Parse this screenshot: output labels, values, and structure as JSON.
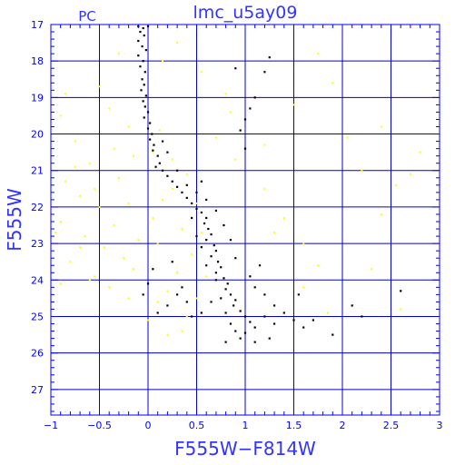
{
  "header": {
    "title": "lmc_u5ay09",
    "chip_label": "PC"
  },
  "colors": {
    "axis": "#0000ff",
    "grid": "#0000cc",
    "label": "#3333ff",
    "primary_stars": "#000000",
    "comparison_stars": "#ffff00"
  },
  "chart_data": {
    "type": "scatter",
    "title": "lmc_u5ay09",
    "xlabel": "F555W−F814W",
    "ylabel": "F555W",
    "xlim": [
      -1,
      3
    ],
    "ylim": [
      27.7,
      17
    ],
    "y_inverted": true,
    "grid": true,
    "x_ticks": [
      -1,
      -0.5,
      0,
      0.5,
      1,
      1.5,
      2,
      2.5,
      3
    ],
    "x_tick_labels": [
      "−1",
      "−0.5",
      "0",
      "0.5",
      "1",
      "1.5",
      "2",
      "2.5",
      "3"
    ],
    "y_ticks": [
      17,
      18,
      19,
      20,
      21,
      22,
      23,
      24,
      25,
      26,
      27
    ],
    "y_tick_labels": [
      "17",
      "18",
      "19",
      "20",
      "21",
      "22",
      "23",
      "24",
      "25",
      "26",
      "27"
    ],
    "series": [
      {
        "color": "#000000",
        "values": [
          [
            -0.1,
            17.05
          ],
          [
            -0.05,
            17.1
          ],
          [
            0.0,
            17.05
          ],
          [
            -0.08,
            17.2
          ],
          [
            -0.04,
            17.3
          ],
          [
            -0.1,
            17.45
          ],
          [
            -0.06,
            17.6
          ],
          [
            -0.02,
            17.7
          ],
          [
            -0.1,
            17.85
          ],
          [
            -0.05,
            18.0
          ],
          [
            -0.08,
            18.15
          ],
          [
            -0.03,
            18.3
          ],
          [
            -0.06,
            18.5
          ],
          [
            -0.04,
            18.65
          ],
          [
            -0.07,
            18.8
          ],
          [
            -0.02,
            18.95
          ],
          [
            -0.05,
            19.1
          ],
          [
            -0.03,
            19.25
          ],
          [
            0.0,
            19.4
          ],
          [
            -0.04,
            19.55
          ],
          [
            0.02,
            19.7
          ],
          [
            0.0,
            19.85
          ],
          [
            0.04,
            20.0
          ],
          [
            0.02,
            20.15
          ],
          [
            0.06,
            20.3
          ],
          [
            0.05,
            20.45
          ],
          [
            0.1,
            20.6
          ],
          [
            0.12,
            20.8
          ],
          [
            0.15,
            21.0
          ],
          [
            0.2,
            21.15
          ],
          [
            0.25,
            21.3
          ],
          [
            0.3,
            21.45
          ],
          [
            0.35,
            21.6
          ],
          [
            0.4,
            21.75
          ],
          [
            0.45,
            21.9
          ],
          [
            0.5,
            22.05
          ],
          [
            0.55,
            22.15
          ],
          [
            0.6,
            22.3
          ],
          [
            0.58,
            22.45
          ],
          [
            0.62,
            22.6
          ],
          [
            0.65,
            22.75
          ],
          [
            0.6,
            22.9
          ],
          [
            0.68,
            23.05
          ],
          [
            0.7,
            23.2
          ],
          [
            0.65,
            23.35
          ],
          [
            0.72,
            23.5
          ],
          [
            0.75,
            23.65
          ],
          [
            0.7,
            23.8
          ],
          [
            0.78,
            23.95
          ],
          [
            0.82,
            24.1
          ],
          [
            0.8,
            24.25
          ],
          [
            0.85,
            24.4
          ],
          [
            0.9,
            24.55
          ],
          [
            0.88,
            24.7
          ],
          [
            0.95,
            24.85
          ],
          [
            1.0,
            25.0
          ],
          [
            1.05,
            25.15
          ],
          [
            1.1,
            25.3
          ],
          [
            1.0,
            25.45
          ],
          [
            0.95,
            25.6
          ],
          [
            0.15,
            20.2
          ],
          [
            0.2,
            20.5
          ],
          [
            0.08,
            20.9
          ],
          [
            0.3,
            21.0
          ],
          [
            0.4,
            21.4
          ],
          [
            0.5,
            21.6
          ],
          [
            0.45,
            22.3
          ],
          [
            0.5,
            22.8
          ],
          [
            0.55,
            23.1
          ],
          [
            0.6,
            23.6
          ],
          [
            0.7,
            24.0
          ],
          [
            0.75,
            24.5
          ],
          [
            0.8,
            24.9
          ],
          [
            0.85,
            25.2
          ],
          [
            1.1,
            24.2
          ],
          [
            1.2,
            24.4
          ],
          [
            1.3,
            24.7
          ],
          [
            1.4,
            24.9
          ],
          [
            1.5,
            25.1
          ],
          [
            1.6,
            25.3
          ],
          [
            1.2,
            25.0
          ],
          [
            1.3,
            25.2
          ],
          [
            1.15,
            23.6
          ],
          [
            1.05,
            23.9
          ],
          [
            0.9,
            23.4
          ],
          [
            0.85,
            22.9
          ],
          [
            0.78,
            22.5
          ],
          [
            0.7,
            22.1
          ],
          [
            0.6,
            21.8
          ],
          [
            0.55,
            21.3
          ],
          [
            0.65,
            24.6
          ],
          [
            0.55,
            24.9
          ],
          [
            0.45,
            25.0
          ],
          [
            0.4,
            24.6
          ],
          [
            0.35,
            24.2
          ],
          [
            0.3,
            24.4
          ],
          [
            0.2,
            24.7
          ],
          [
            0.1,
            24.9
          ],
          [
            -0.05,
            24.4
          ],
          [
            0.0,
            24.1
          ],
          [
            0.05,
            23.7
          ],
          [
            0.25,
            23.5
          ],
          [
            1.0,
            19.6
          ],
          [
            1.05,
            19.3
          ],
          [
            1.1,
            19.0
          ],
          [
            0.95,
            19.9
          ],
          [
            1.0,
            20.4
          ],
          [
            1.25,
            17.9
          ],
          [
            1.2,
            18.3
          ],
          [
            0.9,
            18.2
          ],
          [
            1.55,
            24.4
          ],
          [
            1.7,
            25.1
          ],
          [
            1.9,
            25.5
          ],
          [
            2.1,
            24.7
          ],
          [
            2.6,
            24.3
          ],
          [
            2.2,
            25.0
          ],
          [
            1.25,
            25.6
          ],
          [
            1.1,
            25.7
          ],
          [
            0.9,
            25.4
          ],
          [
            0.8,
            25.7
          ]
        ]
      },
      {
        "color": "#ffff00",
        "values": [
          [
            -0.9,
            19.5
          ],
          [
            -0.75,
            20.2
          ],
          [
            -0.6,
            20.8
          ],
          [
            -0.85,
            21.3
          ],
          [
            -0.7,
            21.7
          ],
          [
            -0.5,
            22.0
          ],
          [
            -0.9,
            22.4
          ],
          [
            -0.65,
            22.8
          ],
          [
            -0.45,
            23.1
          ],
          [
            -0.8,
            23.5
          ],
          [
            -0.55,
            23.9
          ],
          [
            -0.35,
            22.5
          ],
          [
            -0.2,
            21.9
          ],
          [
            -0.3,
            21.2
          ],
          [
            -0.15,
            20.6
          ],
          [
            -0.25,
            23.4
          ],
          [
            -0.1,
            22.9
          ],
          [
            0.05,
            22.3
          ],
          [
            0.15,
            21.8
          ],
          [
            0.25,
            21.5
          ],
          [
            0.35,
            22.6
          ],
          [
            0.45,
            23.3
          ],
          [
            0.3,
            23.8
          ],
          [
            0.2,
            24.3
          ],
          [
            0.1,
            23.0
          ],
          [
            -0.4,
            24.2
          ],
          [
            -0.6,
            24.0
          ],
          [
            -0.95,
            22.7
          ],
          [
            -0.75,
            20.9
          ],
          [
            -0.55,
            21.5
          ],
          [
            -0.35,
            20.4
          ],
          [
            -0.2,
            19.8
          ],
          [
            0.05,
            20.5
          ],
          [
            0.12,
            19.9
          ],
          [
            0.25,
            20.7
          ],
          [
            0.4,
            21.1
          ],
          [
            0.5,
            21.9
          ],
          [
            0.55,
            22.7
          ],
          [
            0.6,
            23.9
          ],
          [
            0.5,
            24.5
          ],
          [
            0.4,
            25.0
          ],
          [
            0.35,
            25.4
          ],
          [
            0.2,
            25.5
          ],
          [
            -0.5,
            18.7
          ],
          [
            -0.3,
            17.8
          ],
          [
            -0.85,
            18.9
          ],
          [
            -0.4,
            19.3
          ],
          [
            0.15,
            18.0
          ],
          [
            0.3,
            17.5
          ],
          [
            0.55,
            18.3
          ],
          [
            0.8,
            18.9
          ],
          [
            0.9,
            20.7
          ],
          [
            1.2,
            21.5
          ],
          [
            1.4,
            22.3
          ],
          [
            1.6,
            23.0
          ],
          [
            1.75,
            23.6
          ],
          [
            1.5,
            19.2
          ],
          [
            1.75,
            17.8
          ],
          [
            1.9,
            18.6
          ],
          [
            2.05,
            20.1
          ],
          [
            2.2,
            21.0
          ],
          [
            2.4,
            19.8
          ],
          [
            2.55,
            21.4
          ],
          [
            2.7,
            21.1
          ],
          [
            2.4,
            22.2
          ],
          [
            2.3,
            23.7
          ],
          [
            2.8,
            20.5
          ],
          [
            2.6,
            24.8
          ],
          [
            1.85,
            24.9
          ],
          [
            1.6,
            24.2
          ],
          [
            1.3,
            22.7
          ],
          [
            1.2,
            20.3
          ],
          [
            0.85,
            19.4
          ],
          [
            0.7,
            20.1
          ],
          [
            -0.7,
            23.1
          ],
          [
            -0.9,
            24.1
          ],
          [
            -0.2,
            24.5
          ],
          [
            0.0,
            25.1
          ],
          [
            0.1,
            24.6
          ],
          [
            -0.15,
            23.7
          ]
        ]
      }
    ]
  }
}
